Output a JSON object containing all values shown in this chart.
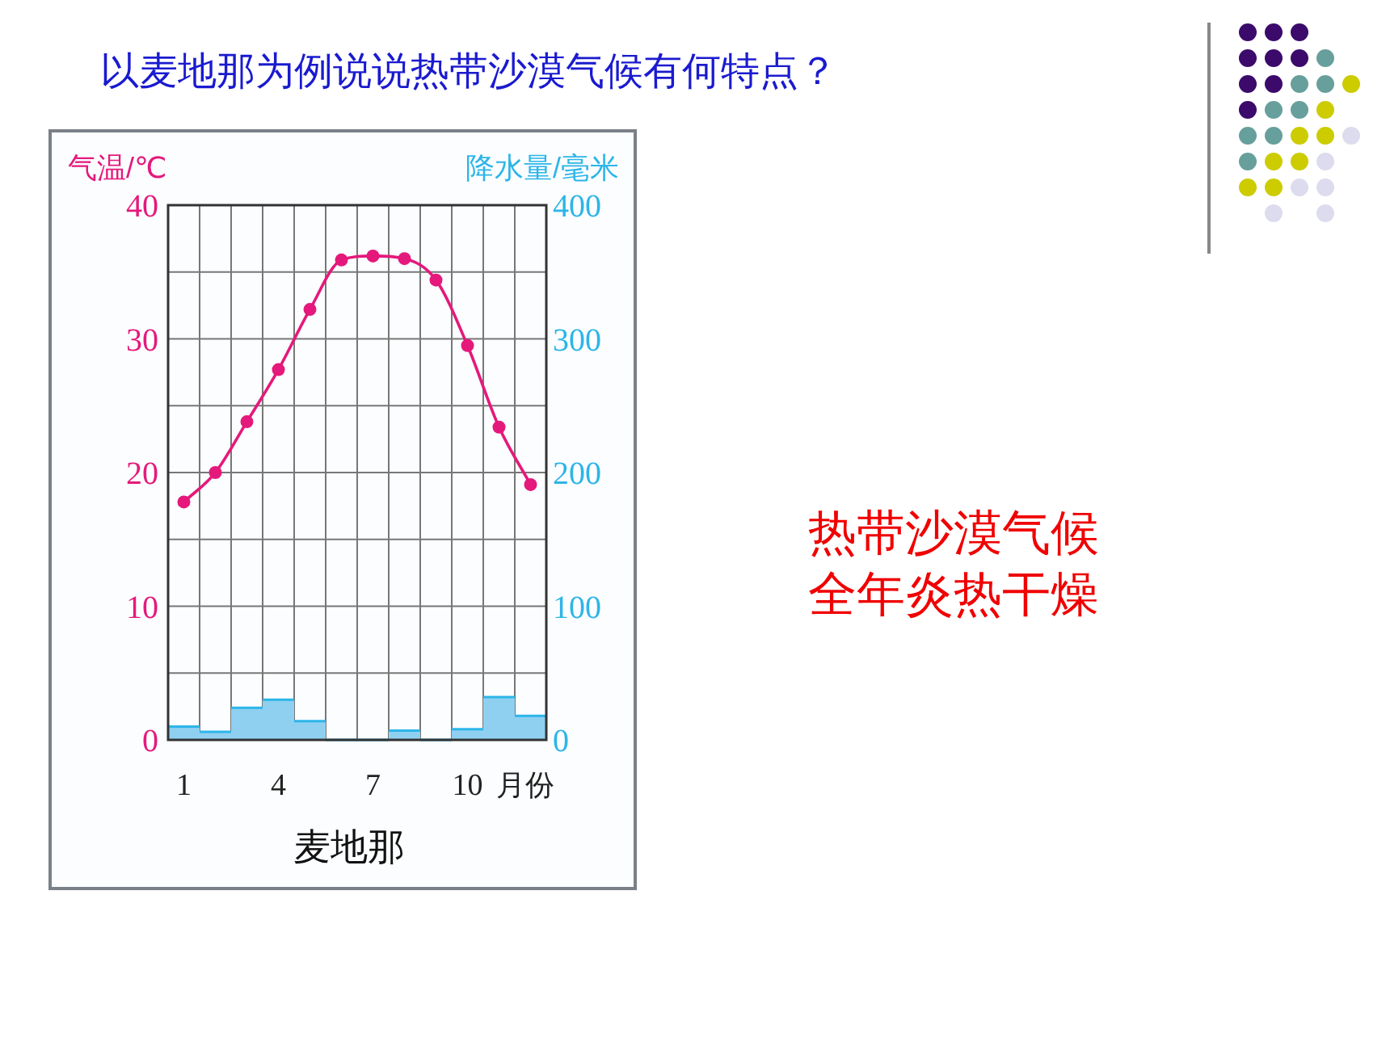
{
  "chart_data": {
    "type": "line",
    "title": "以麦地那为例说说热带沙漠气候有何特点？",
    "subtitle": "麦地那",
    "xlabel": "月份",
    "ylabel": "气温/℃",
    "y2label": "降水量/毫米",
    "annotations": [
      "热带沙漠气候",
      "全年炎热干燥"
    ],
    "categories": [
      "1",
      null,
      null,
      "4",
      null,
      null,
      "7",
      null,
      null,
      "10",
      null,
      null
    ],
    "series": [
      {
        "type": "bar",
        "axis": "y2",
        "color": "#8fd0f0",
        "values": [
          10,
          6,
          24,
          30,
          14,
          0,
          0,
          7,
          0,
          8,
          32,
          18
        ]
      },
      {
        "color": "#e5197b",
        "values": [
          17.8,
          20.0,
          23.8,
          27.7,
          32.2,
          35.9,
          36.2,
          36.0,
          34.4,
          29.5,
          23.4,
          19.1
        ]
      }
    ],
    "ylim": [
      0,
      40
    ],
    "yticks": [
      0,
      {
        "value": 5,
        "label": null
      },
      10,
      {
        "value": 15,
        "label": null
      },
      20,
      {
        "value": 25,
        "label": null
      },
      30,
      {
        "value": 35,
        "label": null
      },
      40
    ],
    "y2lim": [
      0,
      400
    ],
    "y2ticks": [
      0,
      100,
      200,
      300,
      400
    ],
    "grid": true,
    "marker": "circle",
    "line_style": "solid"
  }
}
